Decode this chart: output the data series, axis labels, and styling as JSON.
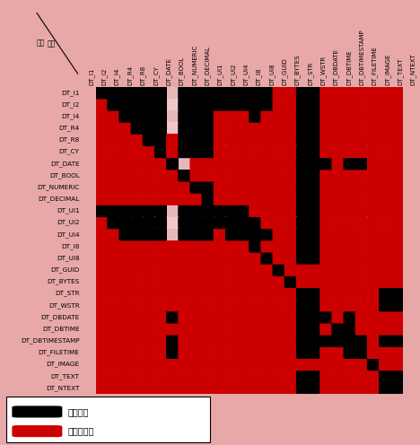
{
  "row_labels": [
    "DT_I1",
    "DT_I2",
    "DT_I4",
    "DT_R4",
    "DT_R8",
    "DT_CY",
    "DT_DATE",
    "DT_BOOL",
    "DT_NUMERIC",
    "DT_DECIMAL",
    "DT_UI1",
    "DT_UI2",
    "DT_UI4",
    "DT_I8",
    "DT_UI8",
    "DT_GUID",
    "DT_BYTES",
    "DT_STR",
    "DT_WSTR",
    "DT_DBDATE",
    "DT_DBTIME",
    "DT_DBTIMESTAMP",
    "DT_FILETIME",
    "DT_IMAGE",
    "DT_TEXT",
    "DT_NTEXT"
  ],
  "col_labels": [
    "DT_I1",
    "DT_I2",
    "DT_I4",
    "DT_R4",
    "DT_R8",
    "DT_CY",
    "DT_DATE",
    "DT_BOOL",
    "DT_NUMERIC",
    "DT_DECIMAL",
    "DT_UI1",
    "DT_UI2",
    "DT_UI4",
    "DT_I8",
    "DT_UI8",
    "DT_GUID",
    "DT_BYTES",
    "DT_STR",
    "DT_WSTR",
    "DT_DBDATE",
    "DT_DBTIME",
    "DT_DBTIMESTAMP",
    "DT_FILETIME",
    "DT_IMAGE",
    "DT_TEXT",
    "DT_NTEXT"
  ],
  "from_label": "從：",
  "to_label": "至：",
  "legend_legal": "合法轉換",
  "legend_illegal": "不合法轉換",
  "legal_color": "#000000",
  "illegal_color": "#cc0000",
  "matrix": [
    [
      1,
      1,
      1,
      1,
      1,
      1,
      0,
      1,
      1,
      1,
      1,
      1,
      1,
      1,
      1,
      2,
      2,
      1,
      1,
      2,
      2,
      2,
      2,
      2,
      2,
      2
    ],
    [
      2,
      1,
      1,
      1,
      1,
      1,
      0,
      1,
      1,
      1,
      1,
      1,
      1,
      1,
      1,
      2,
      2,
      1,
      1,
      2,
      2,
      2,
      2,
      2,
      2,
      2
    ],
    [
      2,
      2,
      1,
      1,
      1,
      1,
      0,
      1,
      1,
      1,
      2,
      2,
      2,
      1,
      2,
      2,
      2,
      1,
      1,
      2,
      2,
      2,
      2,
      2,
      2,
      2
    ],
    [
      2,
      2,
      2,
      1,
      1,
      1,
      0,
      1,
      1,
      1,
      2,
      2,
      2,
      2,
      2,
      2,
      2,
      1,
      1,
      2,
      2,
      2,
      2,
      2,
      2,
      2
    ],
    [
      2,
      2,
      2,
      2,
      1,
      1,
      2,
      1,
      1,
      1,
      2,
      2,
      2,
      2,
      2,
      2,
      2,
      1,
      1,
      2,
      2,
      2,
      2,
      2,
      2,
      2
    ],
    [
      2,
      2,
      2,
      2,
      2,
      1,
      2,
      1,
      1,
      1,
      2,
      2,
      2,
      2,
      2,
      2,
      2,
      1,
      1,
      2,
      2,
      2,
      2,
      2,
      2,
      2
    ],
    [
      2,
      2,
      2,
      2,
      2,
      2,
      1,
      0,
      2,
      2,
      2,
      2,
      2,
      2,
      2,
      2,
      2,
      1,
      1,
      1,
      2,
      1,
      1,
      2,
      2,
      2
    ],
    [
      2,
      2,
      2,
      2,
      2,
      2,
      2,
      1,
      2,
      2,
      2,
      2,
      2,
      2,
      2,
      2,
      2,
      1,
      1,
      2,
      2,
      2,
      2,
      2,
      2,
      2
    ],
    [
      2,
      2,
      2,
      2,
      2,
      2,
      2,
      2,
      1,
      1,
      2,
      2,
      2,
      2,
      2,
      2,
      2,
      1,
      1,
      2,
      2,
      2,
      2,
      2,
      2,
      2
    ],
    [
      2,
      2,
      2,
      2,
      2,
      2,
      2,
      2,
      2,
      1,
      2,
      2,
      2,
      2,
      2,
      2,
      2,
      1,
      1,
      2,
      2,
      2,
      2,
      2,
      2,
      2
    ],
    [
      1,
      1,
      1,
      1,
      1,
      1,
      0,
      1,
      1,
      1,
      1,
      1,
      1,
      2,
      2,
      2,
      2,
      1,
      1,
      2,
      2,
      2,
      2,
      2,
      2,
      2
    ],
    [
      2,
      1,
      1,
      1,
      1,
      1,
      0,
      1,
      1,
      1,
      1,
      1,
      1,
      1,
      2,
      2,
      2,
      1,
      1,
      2,
      2,
      2,
      2,
      2,
      2,
      2
    ],
    [
      2,
      2,
      1,
      1,
      1,
      1,
      0,
      1,
      1,
      1,
      2,
      1,
      1,
      1,
      1,
      2,
      2,
      1,
      1,
      2,
      2,
      2,
      2,
      2,
      2,
      2
    ],
    [
      2,
      2,
      2,
      2,
      2,
      2,
      2,
      2,
      2,
      2,
      2,
      2,
      2,
      1,
      2,
      2,
      2,
      1,
      1,
      2,
      2,
      2,
      2,
      2,
      2,
      2
    ],
    [
      2,
      2,
      2,
      2,
      2,
      2,
      2,
      2,
      2,
      2,
      2,
      2,
      2,
      2,
      1,
      2,
      2,
      1,
      1,
      2,
      2,
      2,
      2,
      2,
      2,
      2
    ],
    [
      2,
      2,
      2,
      2,
      2,
      2,
      2,
      2,
      2,
      2,
      2,
      2,
      2,
      2,
      2,
      1,
      2,
      2,
      2,
      2,
      2,
      2,
      2,
      2,
      2,
      2
    ],
    [
      2,
      2,
      2,
      2,
      2,
      2,
      2,
      2,
      2,
      2,
      2,
      2,
      2,
      2,
      2,
      2,
      1,
      2,
      2,
      2,
      2,
      2,
      2,
      2,
      2,
      2
    ],
    [
      2,
      2,
      2,
      2,
      2,
      2,
      2,
      2,
      2,
      2,
      2,
      2,
      2,
      2,
      2,
      2,
      2,
      1,
      1,
      2,
      2,
      2,
      2,
      2,
      1,
      1
    ],
    [
      2,
      2,
      2,
      2,
      2,
      2,
      2,
      2,
      2,
      2,
      2,
      2,
      2,
      2,
      2,
      2,
      2,
      1,
      1,
      2,
      2,
      2,
      2,
      2,
      1,
      1
    ],
    [
      2,
      2,
      2,
      2,
      2,
      2,
      1,
      2,
      2,
      2,
      2,
      2,
      2,
      2,
      2,
      2,
      2,
      1,
      1,
      1,
      2,
      1,
      2,
      2,
      2,
      2
    ],
    [
      2,
      2,
      2,
      2,
      2,
      2,
      2,
      2,
      2,
      2,
      2,
      2,
      2,
      2,
      2,
      2,
      2,
      1,
      1,
      2,
      1,
      1,
      2,
      2,
      2,
      2
    ],
    [
      2,
      2,
      2,
      2,
      2,
      2,
      1,
      2,
      2,
      2,
      2,
      2,
      2,
      2,
      2,
      2,
      2,
      1,
      1,
      1,
      1,
      1,
      1,
      2,
      1,
      1
    ],
    [
      2,
      2,
      2,
      2,
      2,
      2,
      1,
      2,
      2,
      2,
      2,
      2,
      2,
      2,
      2,
      2,
      2,
      1,
      1,
      2,
      2,
      1,
      1,
      2,
      2,
      2
    ],
    [
      2,
      2,
      2,
      2,
      2,
      2,
      2,
      2,
      2,
      2,
      2,
      2,
      2,
      2,
      2,
      2,
      2,
      2,
      2,
      2,
      2,
      2,
      2,
      1,
      2,
      2
    ],
    [
      2,
      2,
      2,
      2,
      2,
      2,
      2,
      2,
      2,
      2,
      2,
      2,
      2,
      2,
      2,
      2,
      2,
      1,
      1,
      2,
      2,
      2,
      2,
      2,
      1,
      1
    ],
    [
      2,
      2,
      2,
      2,
      2,
      2,
      2,
      2,
      2,
      2,
      2,
      2,
      2,
      2,
      2,
      2,
      2,
      1,
      1,
      2,
      2,
      2,
      2,
      2,
      1,
      1
    ]
  ],
  "header_bg": "#c87878",
  "row_odd_bg": "#f0c8c8",
  "row_even_bg": "#e8b8b8",
  "fig_bg": "#e8a8a8"
}
